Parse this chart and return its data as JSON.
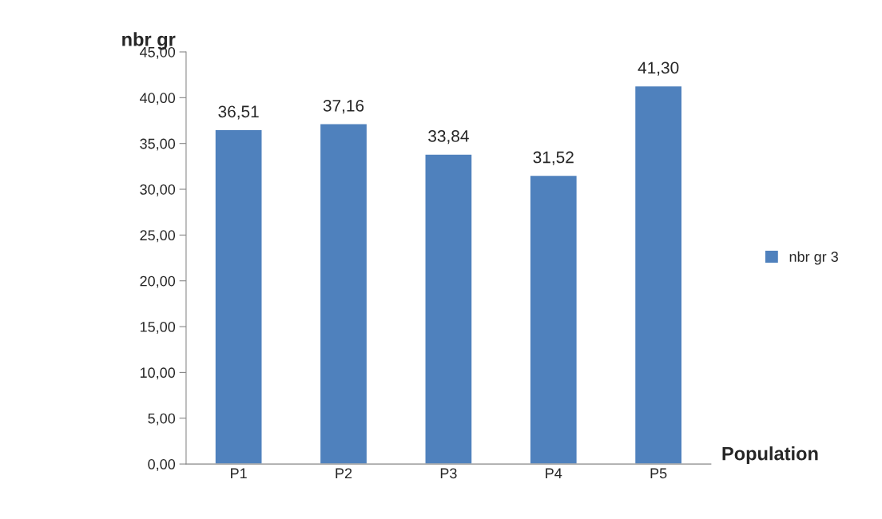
{
  "chart_data": {
    "type": "bar",
    "xlabel": "Population",
    "ylabel": "nbr gr",
    "categories": [
      "P1",
      "P2",
      "P3",
      "P4",
      "P5"
    ],
    "series": [
      {
        "name": "nbr gr 3",
        "color": "#4f81bd",
        "values": [
          36.51,
          37.16,
          33.84,
          31.52,
          41.3
        ],
        "value_labels": [
          "36,51",
          "37,16",
          "33,84",
          "31,52",
          "41,30"
        ]
      }
    ],
    "ylim": [
      0,
      45
    ],
    "yticks": [
      {
        "value": 0,
        "label": "0,00"
      },
      {
        "value": 5,
        "label": "5,00"
      },
      {
        "value": 10,
        "label": "10,00"
      },
      {
        "value": 15,
        "label": "15,00"
      },
      {
        "value": 20,
        "label": "20,00"
      },
      {
        "value": 25,
        "label": "25,00"
      },
      {
        "value": 30,
        "label": "30,00"
      },
      {
        "value": 35,
        "label": "35,00"
      },
      {
        "value": 40,
        "label": "40,00"
      },
      {
        "value": 45,
        "label": "45,00"
      }
    ],
    "grid": false,
    "legend": "right"
  }
}
